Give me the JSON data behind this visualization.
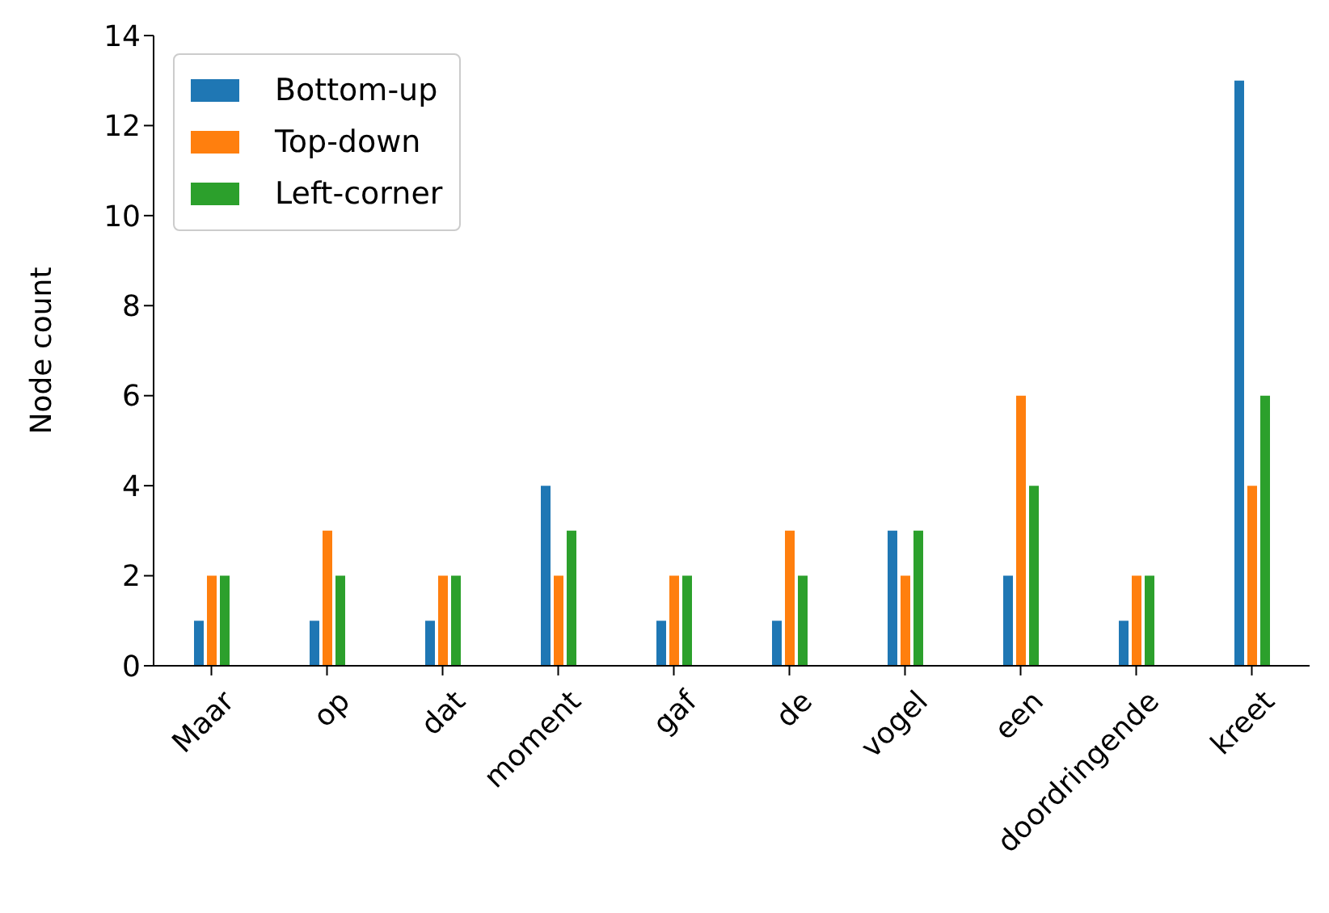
{
  "chart_data": {
    "type": "bar",
    "ylabel": "Node count",
    "categories": [
      "Maar",
      "op",
      "dat",
      "moment",
      "gaf",
      "de",
      "vogel",
      "een",
      "doordringende",
      "kreet"
    ],
    "ylim": [
      0,
      14
    ],
    "yticks": [
      0,
      2,
      4,
      6,
      8,
      10,
      12,
      14
    ],
    "series": [
      {
        "name": "Bottom-up",
        "color": "#1f77b4",
        "values": [
          1,
          1,
          1,
          4,
          1,
          1,
          3,
          2,
          1,
          13
        ]
      },
      {
        "name": "Top-down",
        "color": "#ff7f0e",
        "values": [
          2,
          3,
          2,
          2,
          2,
          3,
          2,
          6,
          2,
          4
        ]
      },
      {
        "name": "Left-corner",
        "color": "#2ca02c",
        "values": [
          2,
          2,
          2,
          3,
          2,
          2,
          3,
          4,
          2,
          6
        ]
      }
    ],
    "grid": false,
    "legend": "top left"
  }
}
